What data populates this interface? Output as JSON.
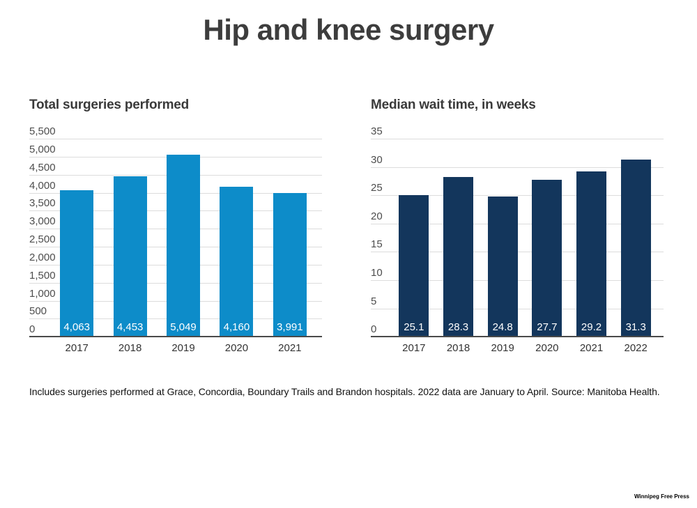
{
  "page_title": "Hip and knee surgery",
  "footnote": "Includes surgeries performed at Grace, Concordia, Boundary Trails and Brandon hospitals. 2022 data are January to April. Source: Manitoba Health.",
  "credit": "Winnipeg Free Press",
  "colors": {
    "surgeries_bar": "#0d8cc9",
    "wait_time_bar": "#13365c",
    "gridline": "#dcdcdc",
    "axis_line": "#4a4a4a",
    "title_text": "#3d3d3d",
    "value_label_text": "#ffffff"
  },
  "chart_data": [
    {
      "type": "bar",
      "title": "Total surgeries performed",
      "categories": [
        "2017",
        "2018",
        "2019",
        "2020",
        "2021"
      ],
      "values": [
        4063,
        4453,
        5049,
        4160,
        3991
      ],
      "value_labels": [
        "4,063",
        "4,453",
        "5,049",
        "4,160",
        "3,991"
      ],
      "xlabel": "",
      "ylabel": "",
      "ylim": [
        0,
        5500
      ],
      "ytick_step": 500,
      "ytick_labels": [
        "0",
        "500",
        "1,000",
        "1,500",
        "2,000",
        "2,500",
        "3,000",
        "3,500",
        "4,000",
        "4,500",
        "5,000",
        "5,500"
      ],
      "bar_color": "#0d8cc9",
      "grid": true,
      "legend": "none"
    },
    {
      "type": "bar",
      "title": "Median wait time, in weeks",
      "categories": [
        "2017",
        "2018",
        "2019",
        "2020",
        "2021",
        "2022"
      ],
      "values": [
        25.1,
        28.3,
        24.8,
        27.7,
        29.2,
        31.3
      ],
      "value_labels": [
        "25.1",
        "28.3",
        "24.8",
        "27.7",
        "29.2",
        "31.3"
      ],
      "xlabel": "",
      "ylabel": "",
      "ylim": [
        0,
        35
      ],
      "ytick_step": 5,
      "ytick_labels": [
        "0",
        "5",
        "10",
        "15",
        "20",
        "25",
        "30",
        "35"
      ],
      "bar_color": "#13365c",
      "grid": true,
      "legend": "none"
    }
  ]
}
